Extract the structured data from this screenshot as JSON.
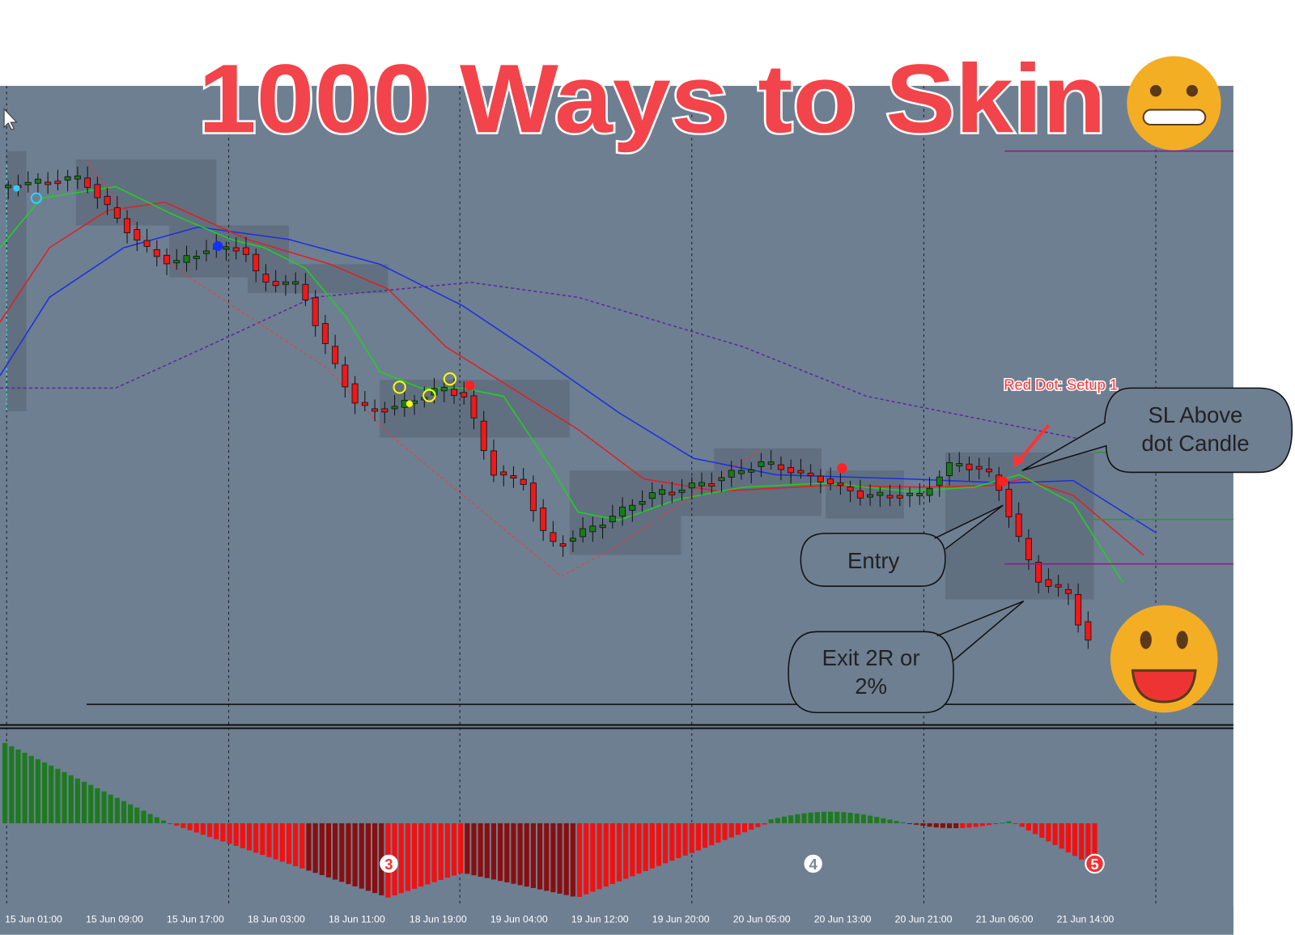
{
  "title": "1000 Ways to Skin",
  "annotations": {
    "red_dot": "Red Dot: Setup 1",
    "sl": [
      "SL Above",
      "dot Candle"
    ],
    "entry": "Entry",
    "exit": [
      "Exit 2R or",
      "2%"
    ]
  },
  "markers": [
    "3",
    "4",
    "5"
  ],
  "x_axis_labels": [
    "15 Jun 01:00",
    "15 Jun 09:00",
    "15 Jun 17:00",
    "18 Jun 03:00",
    "18 Jun 11:00",
    "18 Jun 19:00",
    "19 Jun 04:00",
    "19 Jun 12:00",
    "19 Jun 20:00",
    "20 Jun 05:00",
    "20 Jun 13:00",
    "20 Jun 21:00",
    "21 Jun 06:00",
    "21 Jun 14:00"
  ]
}
